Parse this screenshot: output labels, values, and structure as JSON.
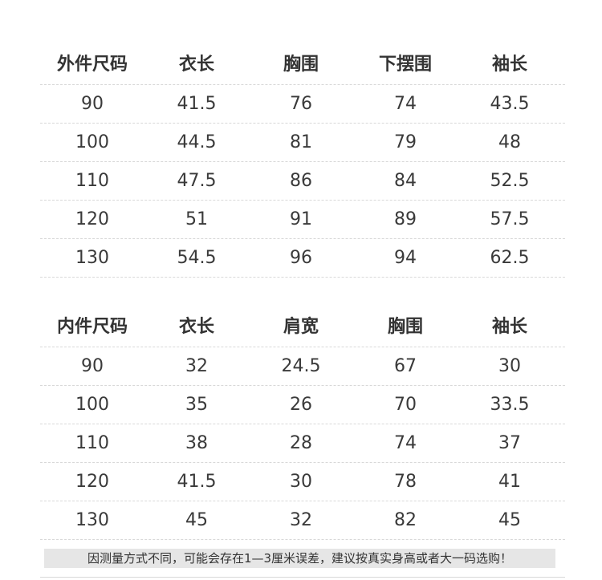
{
  "outer": {
    "headers": [
      "外件尺码",
      "衣长",
      "胸围",
      "下摆围",
      "袖长"
    ],
    "rows": [
      [
        "90",
        "41.5",
        "76",
        "74",
        "43.5"
      ],
      [
        "100",
        "44.5",
        "81",
        "79",
        "48"
      ],
      [
        "110",
        "47.5",
        "86",
        "84",
        "52.5"
      ],
      [
        "120",
        "51",
        "91",
        "89",
        "57.5"
      ],
      [
        "130",
        "54.5",
        "96",
        "94",
        "62.5"
      ]
    ]
  },
  "inner": {
    "headers": [
      "内件尺码",
      "衣长",
      "肩宽",
      "胸围",
      "袖长"
    ],
    "rows": [
      [
        "90",
        "32",
        "24.5",
        "67",
        "30"
      ],
      [
        "100",
        "35",
        "26",
        "70",
        "33.5"
      ],
      [
        "110",
        "38",
        "28",
        "74",
        "37"
      ],
      [
        "120",
        "41.5",
        "30",
        "78",
        "41"
      ],
      [
        "130",
        "45",
        "32",
        "82",
        "45"
      ]
    ]
  },
  "note": "因测量方式不同，可能会存在1—3厘米误差，建议按真实身高或者大一码选购！"
}
